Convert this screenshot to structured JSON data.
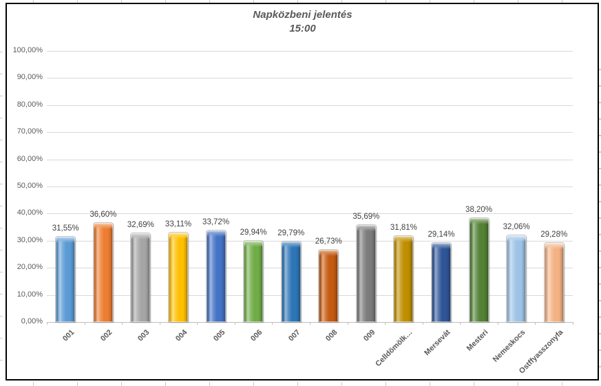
{
  "window": {
    "background_color": "#FFFFFF",
    "frame_border_color": "#000000"
  },
  "chart_data": {
    "type": "bar",
    "title": "Napközbeni jelentés",
    "subtitle": "15:00",
    "categories": [
      "001",
      "002",
      "003",
      "004",
      "005",
      "006",
      "007",
      "008",
      "009",
      "Celldömölk…",
      "Mersevát",
      "Mesteri",
      "Nemeskocs",
      "Ostffyasszonyfa"
    ],
    "values": [
      31.55,
      36.6,
      32.69,
      33.11,
      33.72,
      29.94,
      29.79,
      26.73,
      35.69,
      31.81,
      29.14,
      38.2,
      32.06,
      29.28
    ],
    "value_labels": [
      "31,55%",
      "36,60%",
      "32,69%",
      "33,11%",
      "33,72%",
      "29,94%",
      "29,79%",
      "26,73%",
      "35,69%",
      "31,81%",
      "29,14%",
      "38,20%",
      "32,06%",
      "29,28%"
    ],
    "bar_colors": [
      "#5B9BD5",
      "#ED7D31",
      "#A5A5A5",
      "#FFC000",
      "#4472C4",
      "#70AD47",
      "#2E75B6",
      "#C55A11",
      "#7B7B7B",
      "#BF8F00",
      "#2F5597",
      "#538135",
      "#9DC3E6",
      "#F4B183"
    ],
    "xlabel": "",
    "ylabel": "",
    "ylim": [
      0,
      100
    ],
    "ytick_step": 10,
    "ytick_labels": [
      "0,00%",
      "10,00%",
      "20,00%",
      "30,00%",
      "40,00%",
      "50,00%",
      "60,00%",
      "70,00%",
      "80,00%",
      "90,00%",
      "100,00%"
    ],
    "grid": true,
    "legend_position": "none",
    "gridline_color": "#D9D9D9",
    "axis_line_color": "#BFBFBF",
    "label_text_color": "#404040",
    "axis_text_color": "#595959",
    "title_color": "#595959"
  }
}
